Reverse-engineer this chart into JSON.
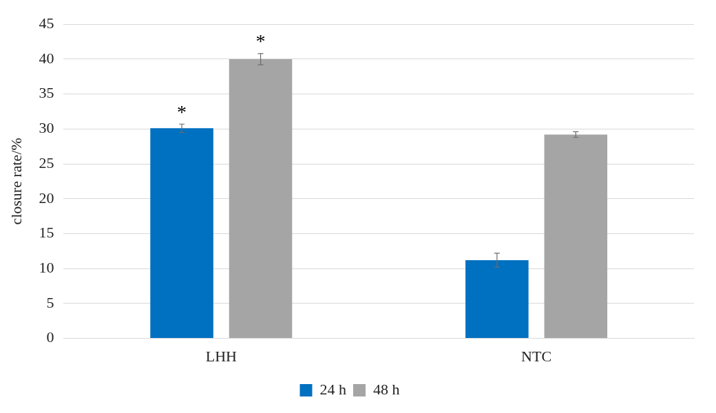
{
  "chart_data": {
    "type": "bar",
    "ylabel": "closure rate/%",
    "categories": [
      "LHH",
      "NTC"
    ],
    "series": [
      {
        "name": "24 h",
        "color": "#0070c0",
        "values": [
          30.1,
          11.2
        ],
        "errors": [
          0.6,
          1.0
        ]
      },
      {
        "name": "48 h",
        "color": "#a5a5a5",
        "values": [
          40.0,
          29.2
        ],
        "errors": [
          0.8,
          0.4
        ]
      }
    ],
    "ylim": [
      0,
      45
    ],
    "yticks": [
      0,
      5,
      10,
      15,
      20,
      25,
      30,
      35,
      40,
      45
    ],
    "grid": "y",
    "legend": "bottom",
    "annotations": [
      "*",
      "*"
    ]
  }
}
